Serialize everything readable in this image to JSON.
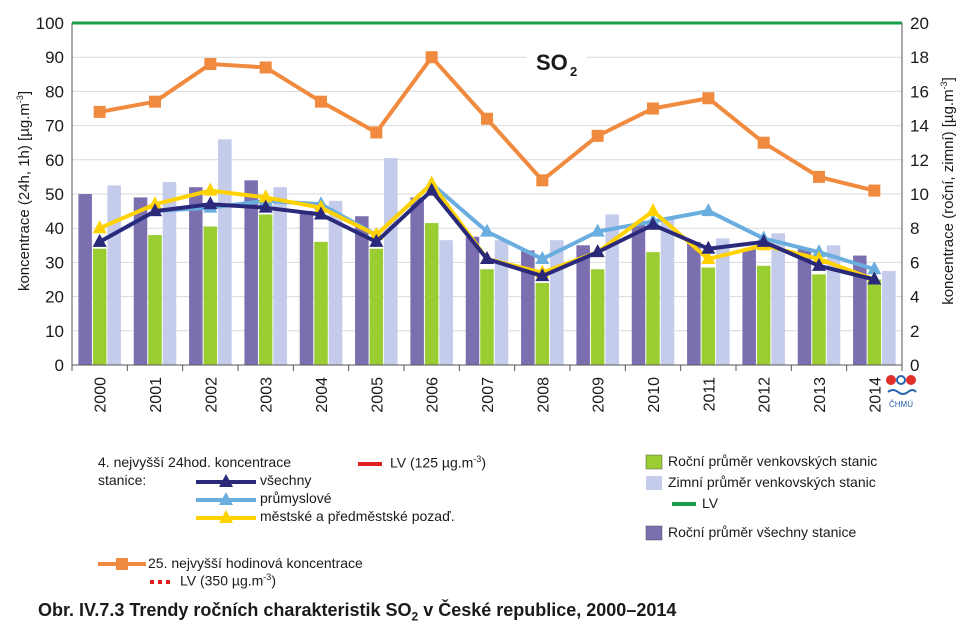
{
  "chart_data": {
    "type": "bar",
    "title_base": "SO",
    "title_sub": "2",
    "categories": [
      "2000",
      "2001",
      "2002",
      "2003",
      "2004",
      "2005",
      "2006",
      "2007",
      "2008",
      "2009",
      "2010",
      "2011",
      "2012",
      "2013",
      "2014"
    ],
    "ylabel_left": "koncentrace (24h, 1h) [µg.m",
    "ylabel_left_sup": "-3",
    "ylabel_left_end": "]",
    "ylabel_right": "koncentrace (roční, zimní) [µg.m",
    "ylabel_right_sup": "-3",
    "ylabel_right_end": "]",
    "ylim_left": [
      0,
      100
    ],
    "ylim_right": [
      0,
      20
    ],
    "yticks_left": [
      "0",
      "10",
      "20",
      "30",
      "40",
      "50",
      "60",
      "70",
      "80",
      "90",
      "100"
    ],
    "yticks_right": [
      "0",
      "2",
      "4",
      "6",
      "8",
      "10",
      "12",
      "14",
      "16",
      "18",
      "20"
    ],
    "bar_series": [
      {
        "name": "Roční průměr všechny stanice",
        "axis": "right",
        "color": "#7b6fb0",
        "values": [
          10.0,
          9.8,
          10.4,
          10.8,
          9.0,
          8.7,
          9.8,
          7.5,
          6.7,
          7.0,
          8.2,
          7.2,
          6.8,
          6.8,
          6.4
        ]
      },
      {
        "name": "Roční průměr venkovských stanic",
        "axis": "right",
        "color": "#9acd32",
        "values": [
          6.8,
          7.6,
          8.1,
          8.8,
          7.2,
          6.8,
          8.3,
          5.6,
          4.8,
          5.6,
          6.6,
          5.7,
          5.8,
          5.3,
          5.0
        ]
      },
      {
        "name": "Zimní průměr venkovských stanic",
        "axis": "right",
        "color": "#c4cbeb",
        "values": [
          10.5,
          10.7,
          13.2,
          10.4,
          9.6,
          12.1,
          7.3,
          7.3,
          7.3,
          8.8,
          8.6,
          7.4,
          7.7,
          7.0,
          5.5
        ]
      }
    ],
    "line_series": [
      {
        "name": "25. nejvyšší hodinová koncentrace",
        "axis": "left",
        "color": "#f08a3e",
        "marker": "square",
        "values": [
          74,
          77,
          88,
          87,
          77,
          68,
          90,
          72,
          54,
          67,
          75,
          78,
          65,
          55,
          51
        ]
      },
      {
        "name": "průmyslové",
        "axis": "left",
        "color": "#6aaee0",
        "marker": "triangle",
        "values": [
          36,
          45,
          46,
          48,
          47,
          38,
          53,
          39,
          31,
          39,
          42,
          45,
          37,
          33,
          28
        ]
      },
      {
        "name": "městské a předměstské pozaď.",
        "axis": "left",
        "color": "#ffd200",
        "marker": "triangle",
        "values": [
          40,
          47,
          51,
          49,
          46,
          38,
          53,
          31,
          27,
          33,
          45,
          31,
          35,
          31,
          25
        ]
      },
      {
        "name": "všechny",
        "axis": "left",
        "color": "#2b2a7a",
        "marker": "triangle",
        "values": [
          36,
          45,
          47,
          46,
          44,
          36,
          51,
          31,
          26,
          33,
          41,
          34,
          36,
          29,
          25
        ]
      }
    ],
    "lv_value": 100,
    "lv_color": "#1aa04a"
  },
  "legend": {
    "group1_title_line1": "4. nejvyšší 24hod. koncentrace",
    "group1_title_line2": "stanice:",
    "all": "všechny",
    "industrial": "průmyslové",
    "urban": "městské a předměstské pozaď.",
    "lv125": "LV (125 µg.m",
    "lv125_sup": "-3",
    "lv125_end": ")",
    "rural_annual": "Roční průměr venkovských stanic",
    "rural_winter": "Zimní průměr venkovských stanic",
    "lv": "LV",
    "annual_all": "Roční průměr všechny stanice",
    "hourly25": "25. nejvyšší hodinová koncentrace",
    "lv350": "LV (350 µg.m",
    "lv350_sup": "-3",
    "lv350_end": ")",
    "red_line_color": "#e02020"
  },
  "caption": {
    "prefix": "Obr. IV.7.3  Trendy ročních charakteristik SO",
    "sub": "2",
    "suffix": " v České republice, 2000–2014"
  },
  "logo": {
    "text": "ČHMÚ",
    "red": "#e0302a",
    "blue": "#2a63b0"
  }
}
